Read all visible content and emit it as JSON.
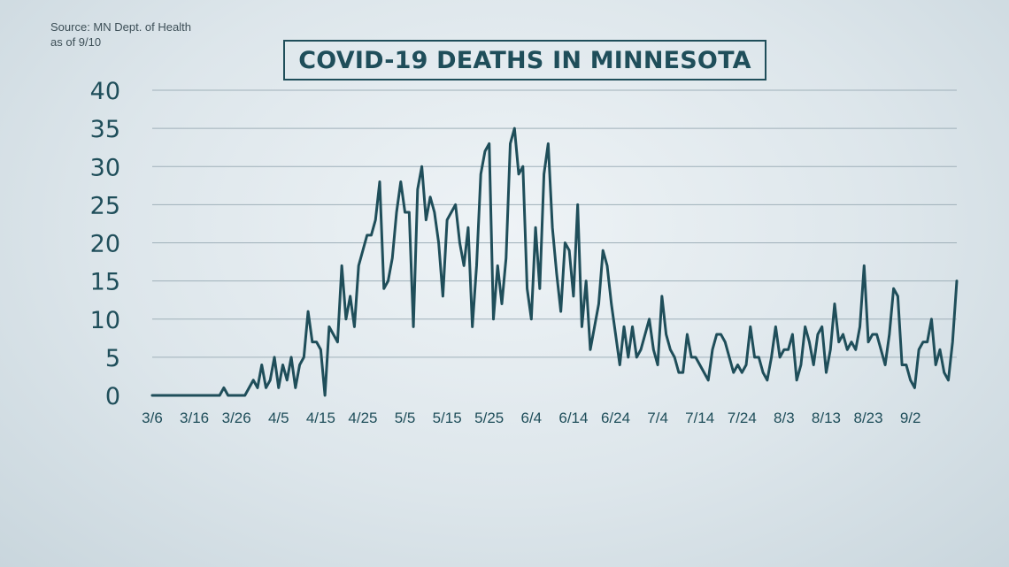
{
  "source": {
    "line1": "Source: MN Dept. of Health",
    "line2": "as of 9/10"
  },
  "title": "COVID-19 DEATHS IN MINNESOTA",
  "colors": {
    "line": "#1f4e5a",
    "grid": "#9fb0b9",
    "text": "#1f4e5a"
  },
  "chart_data": {
    "type": "line",
    "title": "COVID-19 DEATHS IN MINNESOTA",
    "xlabel": "",
    "ylabel": "",
    "ylim": [
      0,
      40
    ],
    "yticks": [
      "0",
      "5",
      "10",
      "15",
      "20",
      "25",
      "30",
      "35",
      "40"
    ],
    "xticks": [
      "3/6",
      "3/16",
      "3/26",
      "4/5",
      "4/15",
      "4/25",
      "5/5",
      "5/15",
      "5/25",
      "6/4",
      "6/14",
      "6/24",
      "7/4",
      "7/14",
      "7/24",
      "8/3",
      "8/13",
      "8/23",
      "9/2"
    ],
    "start_date": "3/6",
    "grid": true,
    "legend": "none",
    "series": [
      {
        "name": "",
        "values": [
          0,
          0,
          0,
          0,
          0,
          0,
          0,
          0,
          0,
          0,
          0,
          0,
          0,
          0,
          0,
          0,
          0,
          1,
          0,
          0,
          0,
          0,
          0,
          1,
          2,
          1,
          4,
          1,
          2,
          5,
          1,
          4,
          2,
          5,
          1,
          4,
          5,
          11,
          7,
          7,
          6,
          0,
          9,
          8,
          7,
          17,
          10,
          13,
          9,
          17,
          19,
          21,
          21,
          23,
          28,
          14,
          15,
          18,
          24,
          28,
          24,
          24,
          9,
          27,
          30,
          23,
          26,
          24,
          20,
          13,
          23,
          24,
          25,
          20,
          17,
          22,
          9,
          17,
          29,
          32,
          33,
          10,
          17,
          12,
          18,
          33,
          35,
          29,
          30,
          14,
          10,
          22,
          14,
          29,
          33,
          22,
          16,
          11,
          20,
          19,
          13,
          25,
          9,
          15,
          6,
          9,
          12,
          19,
          17,
          12,
          8,
          4,
          9,
          5,
          9,
          5,
          6,
          8,
          10,
          6,
          4,
          13,
          8,
          6,
          5,
          3,
          3,
          8,
          5,
          5,
          4,
          3,
          2,
          6,
          8,
          8,
          7,
          5,
          3,
          4,
          3,
          4,
          9,
          5,
          5,
          3,
          2,
          5,
          9,
          5,
          6,
          6,
          8,
          2,
          4,
          9,
          7,
          4,
          8,
          9,
          3,
          6,
          12,
          7,
          8,
          6,
          7,
          6,
          9,
          17,
          7,
          8,
          8,
          6,
          4,
          8,
          14,
          13,
          4,
          4,
          2,
          1,
          6,
          7,
          7,
          10,
          4,
          6,
          3,
          2,
          7,
          15
        ]
      }
    ]
  }
}
